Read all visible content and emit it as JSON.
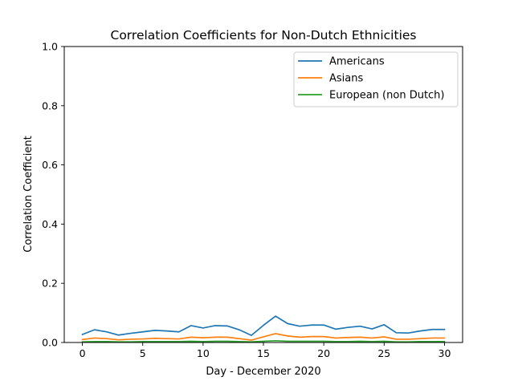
{
  "chart_data": {
    "type": "line",
    "title": "Correlation Coefficients for Non-Dutch Ethnicities",
    "xlabel": "Day - December 2020",
    "ylabel": "Correlation Coefficient",
    "xlim": [
      -1.5,
      31.5
    ],
    "ylim": [
      0.0,
      1.0
    ],
    "xticks": [
      0,
      5,
      10,
      15,
      20,
      25,
      30
    ],
    "xtick_labels": [
      "0",
      "5",
      "10",
      "15",
      "20",
      "25",
      "30"
    ],
    "yticks": [
      0.0,
      0.2,
      0.4,
      0.6,
      0.8,
      1.0
    ],
    "ytick_labels": [
      "0.0",
      "0.2",
      "0.4",
      "0.6",
      "0.8",
      "1.0"
    ],
    "grid": false,
    "legend_position": "top-right",
    "x": [
      0,
      1,
      2,
      3,
      4,
      5,
      6,
      7,
      8,
      9,
      10,
      11,
      12,
      13,
      14,
      15,
      16,
      17,
      18,
      19,
      20,
      21,
      22,
      23,
      24,
      25,
      26,
      27,
      28,
      29,
      30
    ],
    "series": [
      {
        "name": "Americans",
        "color": "#1f77b4",
        "values": [
          0.027,
          0.043,
          0.036,
          0.025,
          0.031,
          0.036,
          0.041,
          0.039,
          0.036,
          0.057,
          0.049,
          0.057,
          0.056,
          0.043,
          0.024,
          0.058,
          0.089,
          0.064,
          0.055,
          0.059,
          0.059,
          0.045,
          0.051,
          0.055,
          0.046,
          0.06,
          0.033,
          0.032,
          0.039,
          0.044,
          0.044
        ]
      },
      {
        "name": "Asians",
        "color": "#ff7f0e",
        "values": [
          0.01,
          0.015,
          0.013,
          0.009,
          0.011,
          0.012,
          0.014,
          0.013,
          0.012,
          0.018,
          0.016,
          0.018,
          0.018,
          0.013,
          0.008,
          0.019,
          0.03,
          0.022,
          0.018,
          0.02,
          0.02,
          0.015,
          0.017,
          0.018,
          0.015,
          0.019,
          0.011,
          0.011,
          0.013,
          0.015,
          0.015
        ]
      },
      {
        "name": "European (non Dutch)",
        "color": "#2ca02c",
        "values": [
          0.002,
          0.003,
          0.003,
          0.002,
          0.002,
          0.003,
          0.003,
          0.003,
          0.003,
          0.004,
          0.003,
          0.004,
          0.004,
          0.003,
          0.002,
          0.004,
          0.006,
          0.004,
          0.004,
          0.004,
          0.004,
          0.003,
          0.003,
          0.004,
          0.003,
          0.004,
          0.002,
          0.002,
          0.003,
          0.003,
          0.003
        ]
      }
    ]
  }
}
